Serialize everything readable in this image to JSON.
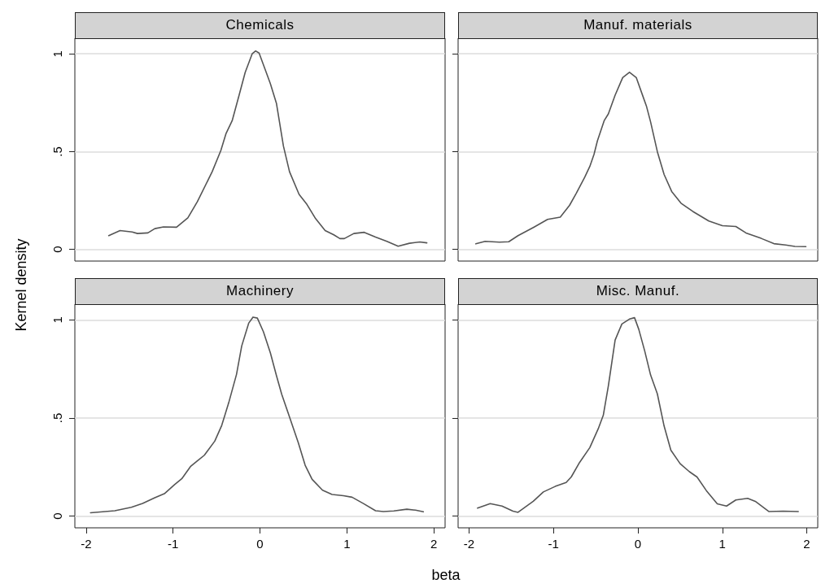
{
  "chart_data": [
    {
      "type": "line",
      "title": "Chemicals",
      "ylabel": "Kernel density",
      "xlim": [
        -2.13,
        2.13
      ],
      "ylim": [
        -0.06,
        1.08
      ],
      "xticks": [
        -2,
        -1,
        0,
        1,
        2
      ],
      "yticks": [
        0,
        {
          "value": 0.5,
          "label": ".5"
        },
        1
      ],
      "grid": "y",
      "tick_labels": "y",
      "marker": "none",
      "line_style": "solid",
      "series": [
        {
          "color": "#555555",
          "x": [
            -1.74,
            -1.61,
            -1.47,
            -1.41,
            -1.29,
            -1.21,
            -1.11,
            -0.96,
            -0.83,
            -0.72,
            -0.55,
            -0.45,
            -0.39,
            -0.32,
            -0.24,
            -0.17,
            -0.09,
            -0.05,
            -0.01,
            0.06,
            0.12,
            0.19,
            0.27,
            0.34,
            0.45,
            0.54,
            0.64,
            0.75,
            0.85,
            0.92,
            0.97,
            1.08,
            1.2,
            1.33,
            1.46,
            1.59,
            1.72,
            1.84,
            1.92
          ],
          "values": [
            0.07,
            0.096,
            0.089,
            0.081,
            0.084,
            0.106,
            0.115,
            0.113,
            0.161,
            0.244,
            0.397,
            0.506,
            0.593,
            0.658,
            0.789,
            0.905,
            1.0,
            1.015,
            1.004,
            0.92,
            0.847,
            0.746,
            0.528,
            0.397,
            0.281,
            0.23,
            0.157,
            0.096,
            0.074,
            0.055,
            0.055,
            0.081,
            0.087,
            0.063,
            0.041,
            0.016,
            0.031,
            0.038,
            0.033
          ]
        }
      ]
    },
    {
      "type": "line",
      "title": "Manuf. materials",
      "xlim": [
        -2.13,
        2.13
      ],
      "ylim": [
        -0.06,
        1.08
      ],
      "xticks": [
        -2,
        -1,
        0,
        1,
        2
      ],
      "yticks": [
        0,
        0.5,
        1
      ],
      "grid": "y",
      "tick_labels": false,
      "marker": "none",
      "line_style": "solid",
      "series": [
        {
          "color": "#555555",
          "x": [
            -1.92,
            -1.81,
            -1.64,
            -1.53,
            -1.42,
            -1.23,
            -1.07,
            -0.92,
            -0.81,
            -0.73,
            -0.63,
            -0.57,
            -0.52,
            -0.48,
            -0.4,
            -0.35,
            -0.27,
            -0.18,
            -0.1,
            -0.02,
            0.06,
            0.1,
            0.15,
            0.23,
            0.31,
            0.4,
            0.51,
            0.65,
            0.84,
            1.0,
            1.16,
            1.28,
            1.46,
            1.61,
            1.75,
            1.86,
            1.99
          ],
          "values": [
            0.028,
            0.041,
            0.037,
            0.039,
            0.07,
            0.114,
            0.153,
            0.165,
            0.225,
            0.287,
            0.369,
            0.424,
            0.486,
            0.555,
            0.658,
            0.693,
            0.789,
            0.879,
            0.906,
            0.879,
            0.782,
            0.734,
            0.652,
            0.5,
            0.383,
            0.296,
            0.236,
            0.194,
            0.145,
            0.121,
            0.117,
            0.084,
            0.056,
            0.029,
            0.022,
            0.015,
            0.014
          ]
        }
      ]
    },
    {
      "type": "line",
      "title": "Machinery",
      "xlabel": "beta",
      "xlim": [
        -2.13,
        2.13
      ],
      "ylim": [
        -0.06,
        1.08
      ],
      "xticks": [
        -2,
        -1,
        0,
        1,
        2
      ],
      "yticks": [
        0,
        {
          "value": 0.5,
          "label": ".5"
        },
        1
      ],
      "grid": "y",
      "marker": "none",
      "line_style": "solid",
      "series": [
        {
          "color": "#555555",
          "x": [
            -1.95,
            -1.67,
            -1.48,
            -1.35,
            -1.21,
            -1.1,
            -0.98,
            -0.9,
            -0.8,
            -0.72,
            -0.64,
            -0.52,
            -0.44,
            -0.36,
            -0.27,
            -0.21,
            -0.13,
            -0.08,
            -0.03,
            0.04,
            0.12,
            0.19,
            0.25,
            0.34,
            0.44,
            0.52,
            0.6,
            0.72,
            0.83,
            0.96,
            1.06,
            1.19,
            1.33,
            1.42,
            1.54,
            1.69,
            1.79,
            1.88
          ],
          "values": [
            0.017,
            0.027,
            0.045,
            0.064,
            0.093,
            0.114,
            0.161,
            0.19,
            0.252,
            0.281,
            0.31,
            0.382,
            0.462,
            0.577,
            0.722,
            0.867,
            0.983,
            1.014,
            1.009,
            0.939,
            0.831,
            0.715,
            0.621,
            0.505,
            0.375,
            0.259,
            0.187,
            0.132,
            0.11,
            0.104,
            0.096,
            0.064,
            0.027,
            0.023,
            0.026,
            0.035,
            0.03,
            0.022
          ]
        }
      ]
    },
    {
      "type": "line",
      "title": "Misc. Manuf.",
      "xlim": [
        -2.13,
        2.13
      ],
      "ylim": [
        -0.06,
        1.08
      ],
      "xticks": [
        -2,
        -1,
        0,
        1,
        2
      ],
      "yticks": [
        0,
        0.5,
        1
      ],
      "grid": "y",
      "tick_labels": "x",
      "marker": "none",
      "line_style": "solid",
      "series": [
        {
          "color": "#555555",
          "x": [
            -1.9,
            -1.75,
            -1.61,
            -1.48,
            -1.42,
            -1.35,
            -1.24,
            -1.12,
            -0.98,
            -0.85,
            -0.79,
            -0.69,
            -0.57,
            -0.47,
            -0.41,
            -0.35,
            -0.27,
            -0.19,
            -0.1,
            -0.04,
            0.01,
            0.08,
            0.15,
            0.23,
            0.31,
            0.39,
            0.5,
            0.61,
            0.7,
            0.81,
            0.94,
            1.05,
            1.16,
            1.3,
            1.39,
            1.55,
            1.72,
            1.9
          ],
          "values": [
            0.041,
            0.063,
            0.051,
            0.025,
            0.019,
            0.041,
            0.075,
            0.123,
            0.151,
            0.171,
            0.199,
            0.274,
            0.349,
            0.445,
            0.514,
            0.664,
            0.897,
            0.979,
            1.004,
            1.011,
            0.952,
            0.842,
            0.719,
            0.623,
            0.459,
            0.336,
            0.267,
            0.226,
            0.199,
            0.13,
            0.062,
            0.051,
            0.082,
            0.09,
            0.075,
            0.023,
            0.025,
            0.023
          ]
        }
      ]
    }
  ]
}
